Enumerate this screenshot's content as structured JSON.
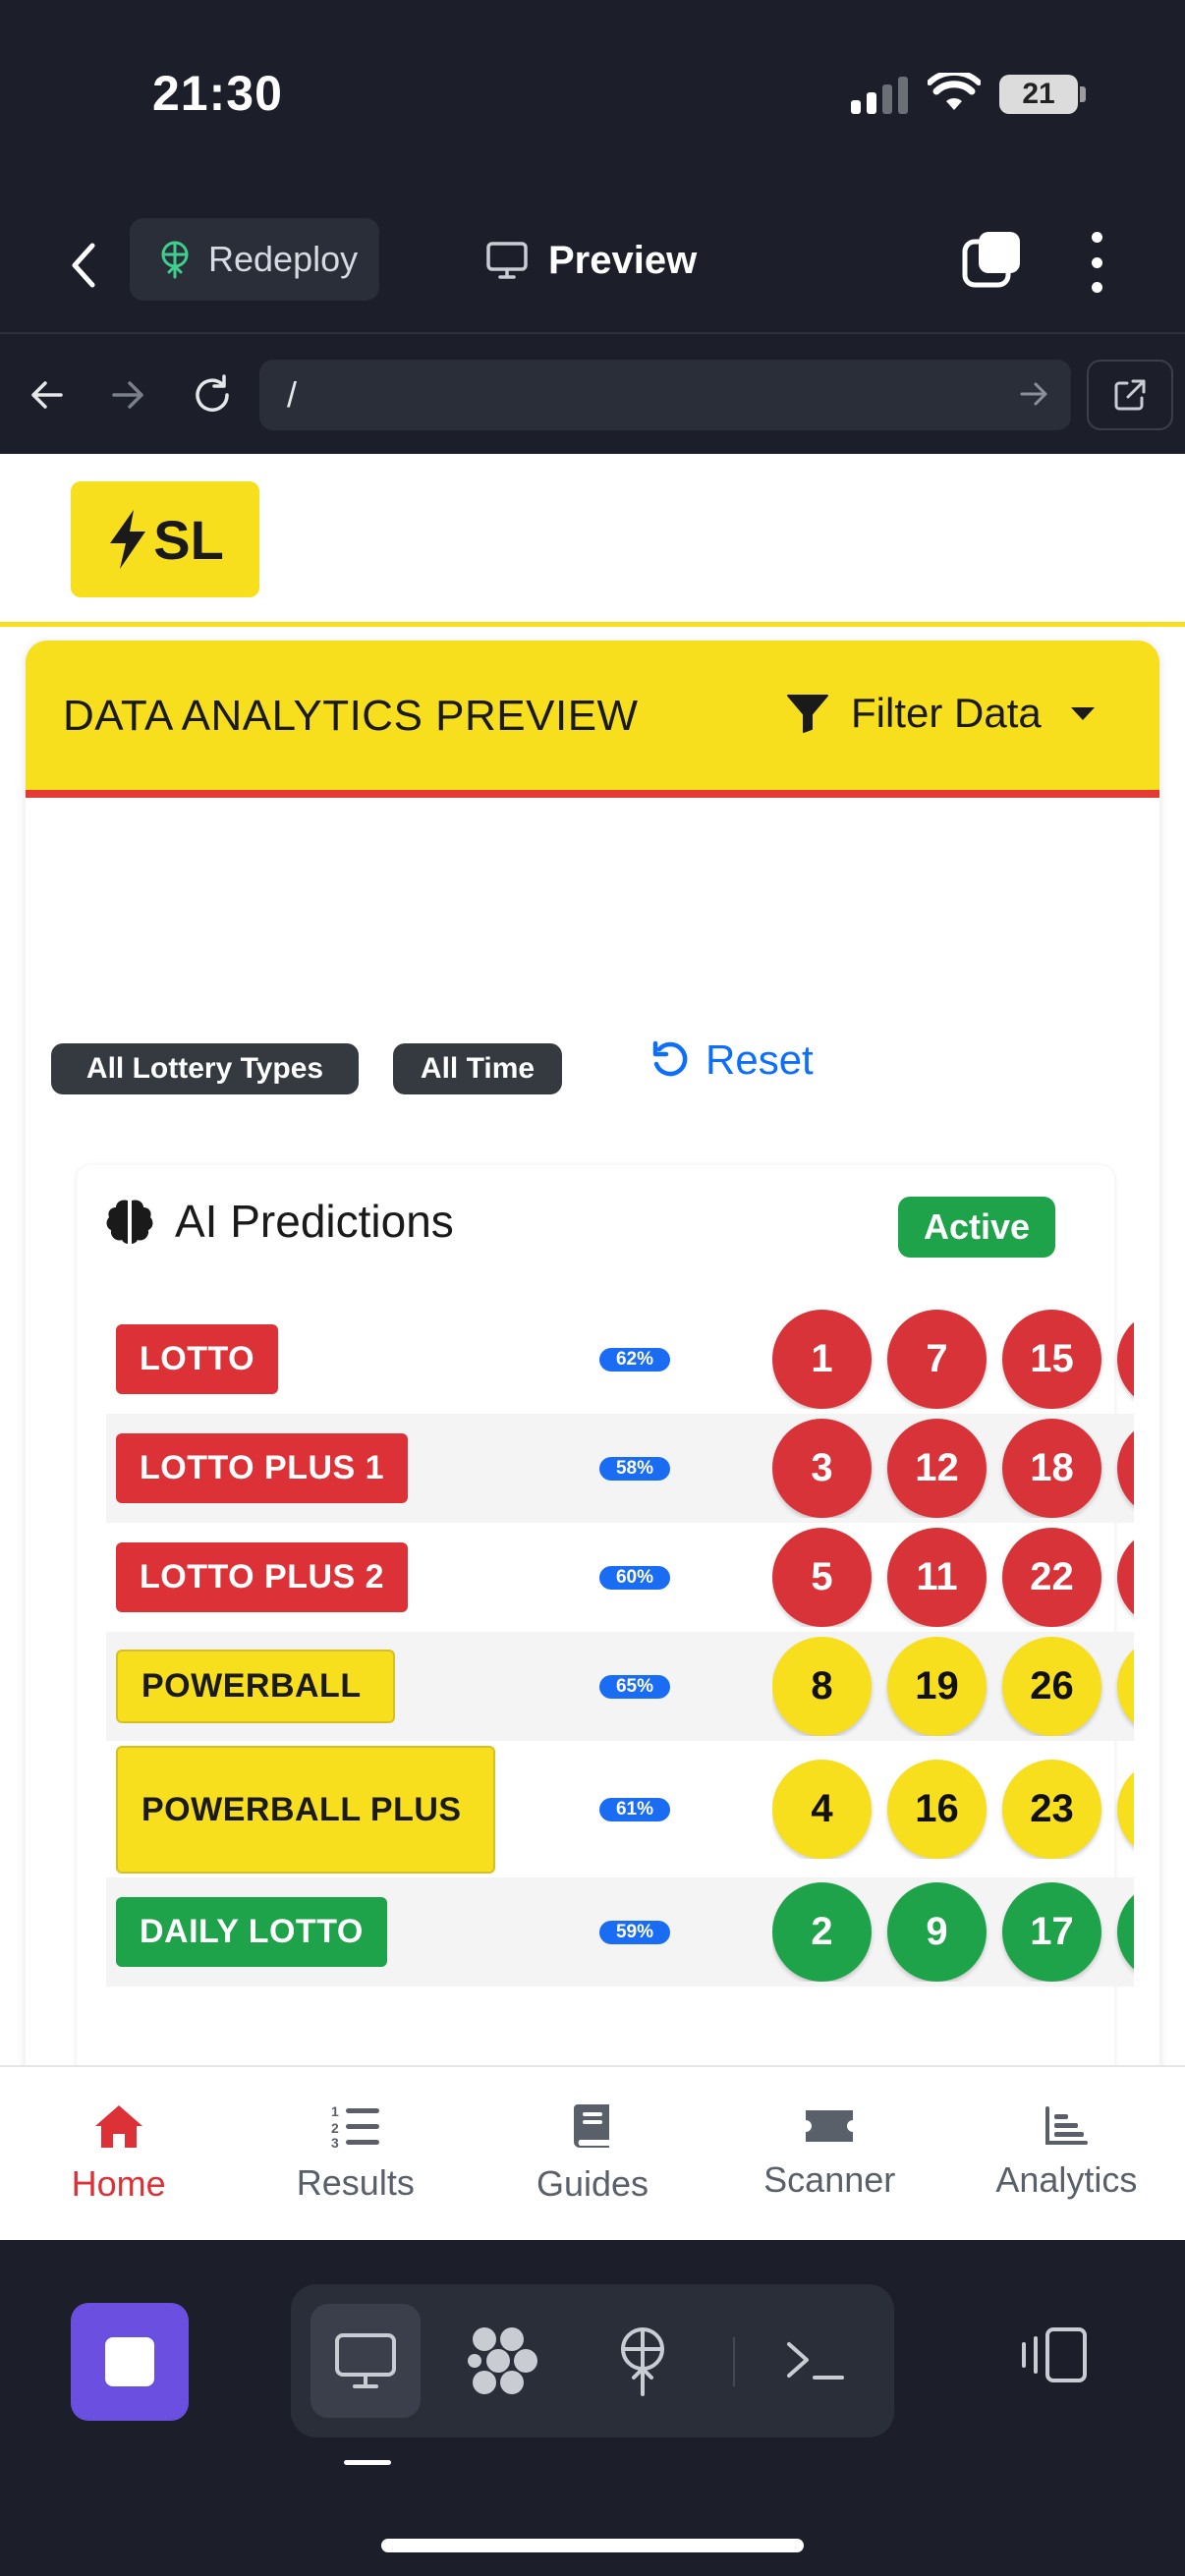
{
  "status_bar": {
    "time": "21:30",
    "battery": "21"
  },
  "app_header": {
    "redeploy_label": "Redeploy",
    "title": "Preview"
  },
  "browser": {
    "url": "/"
  },
  "site": {
    "logo_text": "SL",
    "panel_title": "DATA ANALYTICS PREVIEW",
    "filter_label": "Filter Data",
    "filters": [
      "All Lottery Types",
      "All Time"
    ],
    "reset_label": "Reset"
  },
  "predictions": {
    "title": "AI Predictions",
    "status": "Active",
    "rows": [
      {
        "name": "LOTTO",
        "color": "red",
        "confidence": "62%",
        "numbers": [
          "1",
          "7",
          "15"
        ]
      },
      {
        "name": "LOTTO PLUS 1",
        "color": "red",
        "confidence": "58%",
        "numbers": [
          "3",
          "12",
          "18"
        ]
      },
      {
        "name": "LOTTO PLUS 2",
        "color": "red",
        "confidence": "60%",
        "numbers": [
          "5",
          "11",
          "22"
        ]
      },
      {
        "name": "POWERBALL",
        "color": "yellow",
        "confidence": "65%",
        "numbers": [
          "8",
          "19",
          "26"
        ]
      },
      {
        "name": "POWERBALL PLUS",
        "color": "yellow",
        "confidence": "61%",
        "numbers": [
          "4",
          "16",
          "23"
        ]
      },
      {
        "name": "DAILY LOTTO",
        "color": "green",
        "confidence": "59%",
        "numbers": [
          "2",
          "9",
          "17"
        ]
      }
    ]
  },
  "bottom_nav": {
    "items": [
      {
        "label": "Home",
        "icon": "home-icon",
        "active": true
      },
      {
        "label": "Results",
        "icon": "list-ordered-icon",
        "active": false
      },
      {
        "label": "Guides",
        "icon": "book-icon",
        "active": false
      },
      {
        "label": "Scanner",
        "icon": "ticket-icon",
        "active": false
      },
      {
        "label": "Analytics",
        "icon": "bar-chart-icon",
        "active": false
      }
    ]
  },
  "colors": {
    "brand_yellow": "#f7df1e",
    "lotto_red": "#dc3237",
    "daily_green": "#1ea34a",
    "link_blue": "#0d6efd",
    "stop_purple": "#6a4fe0"
  }
}
